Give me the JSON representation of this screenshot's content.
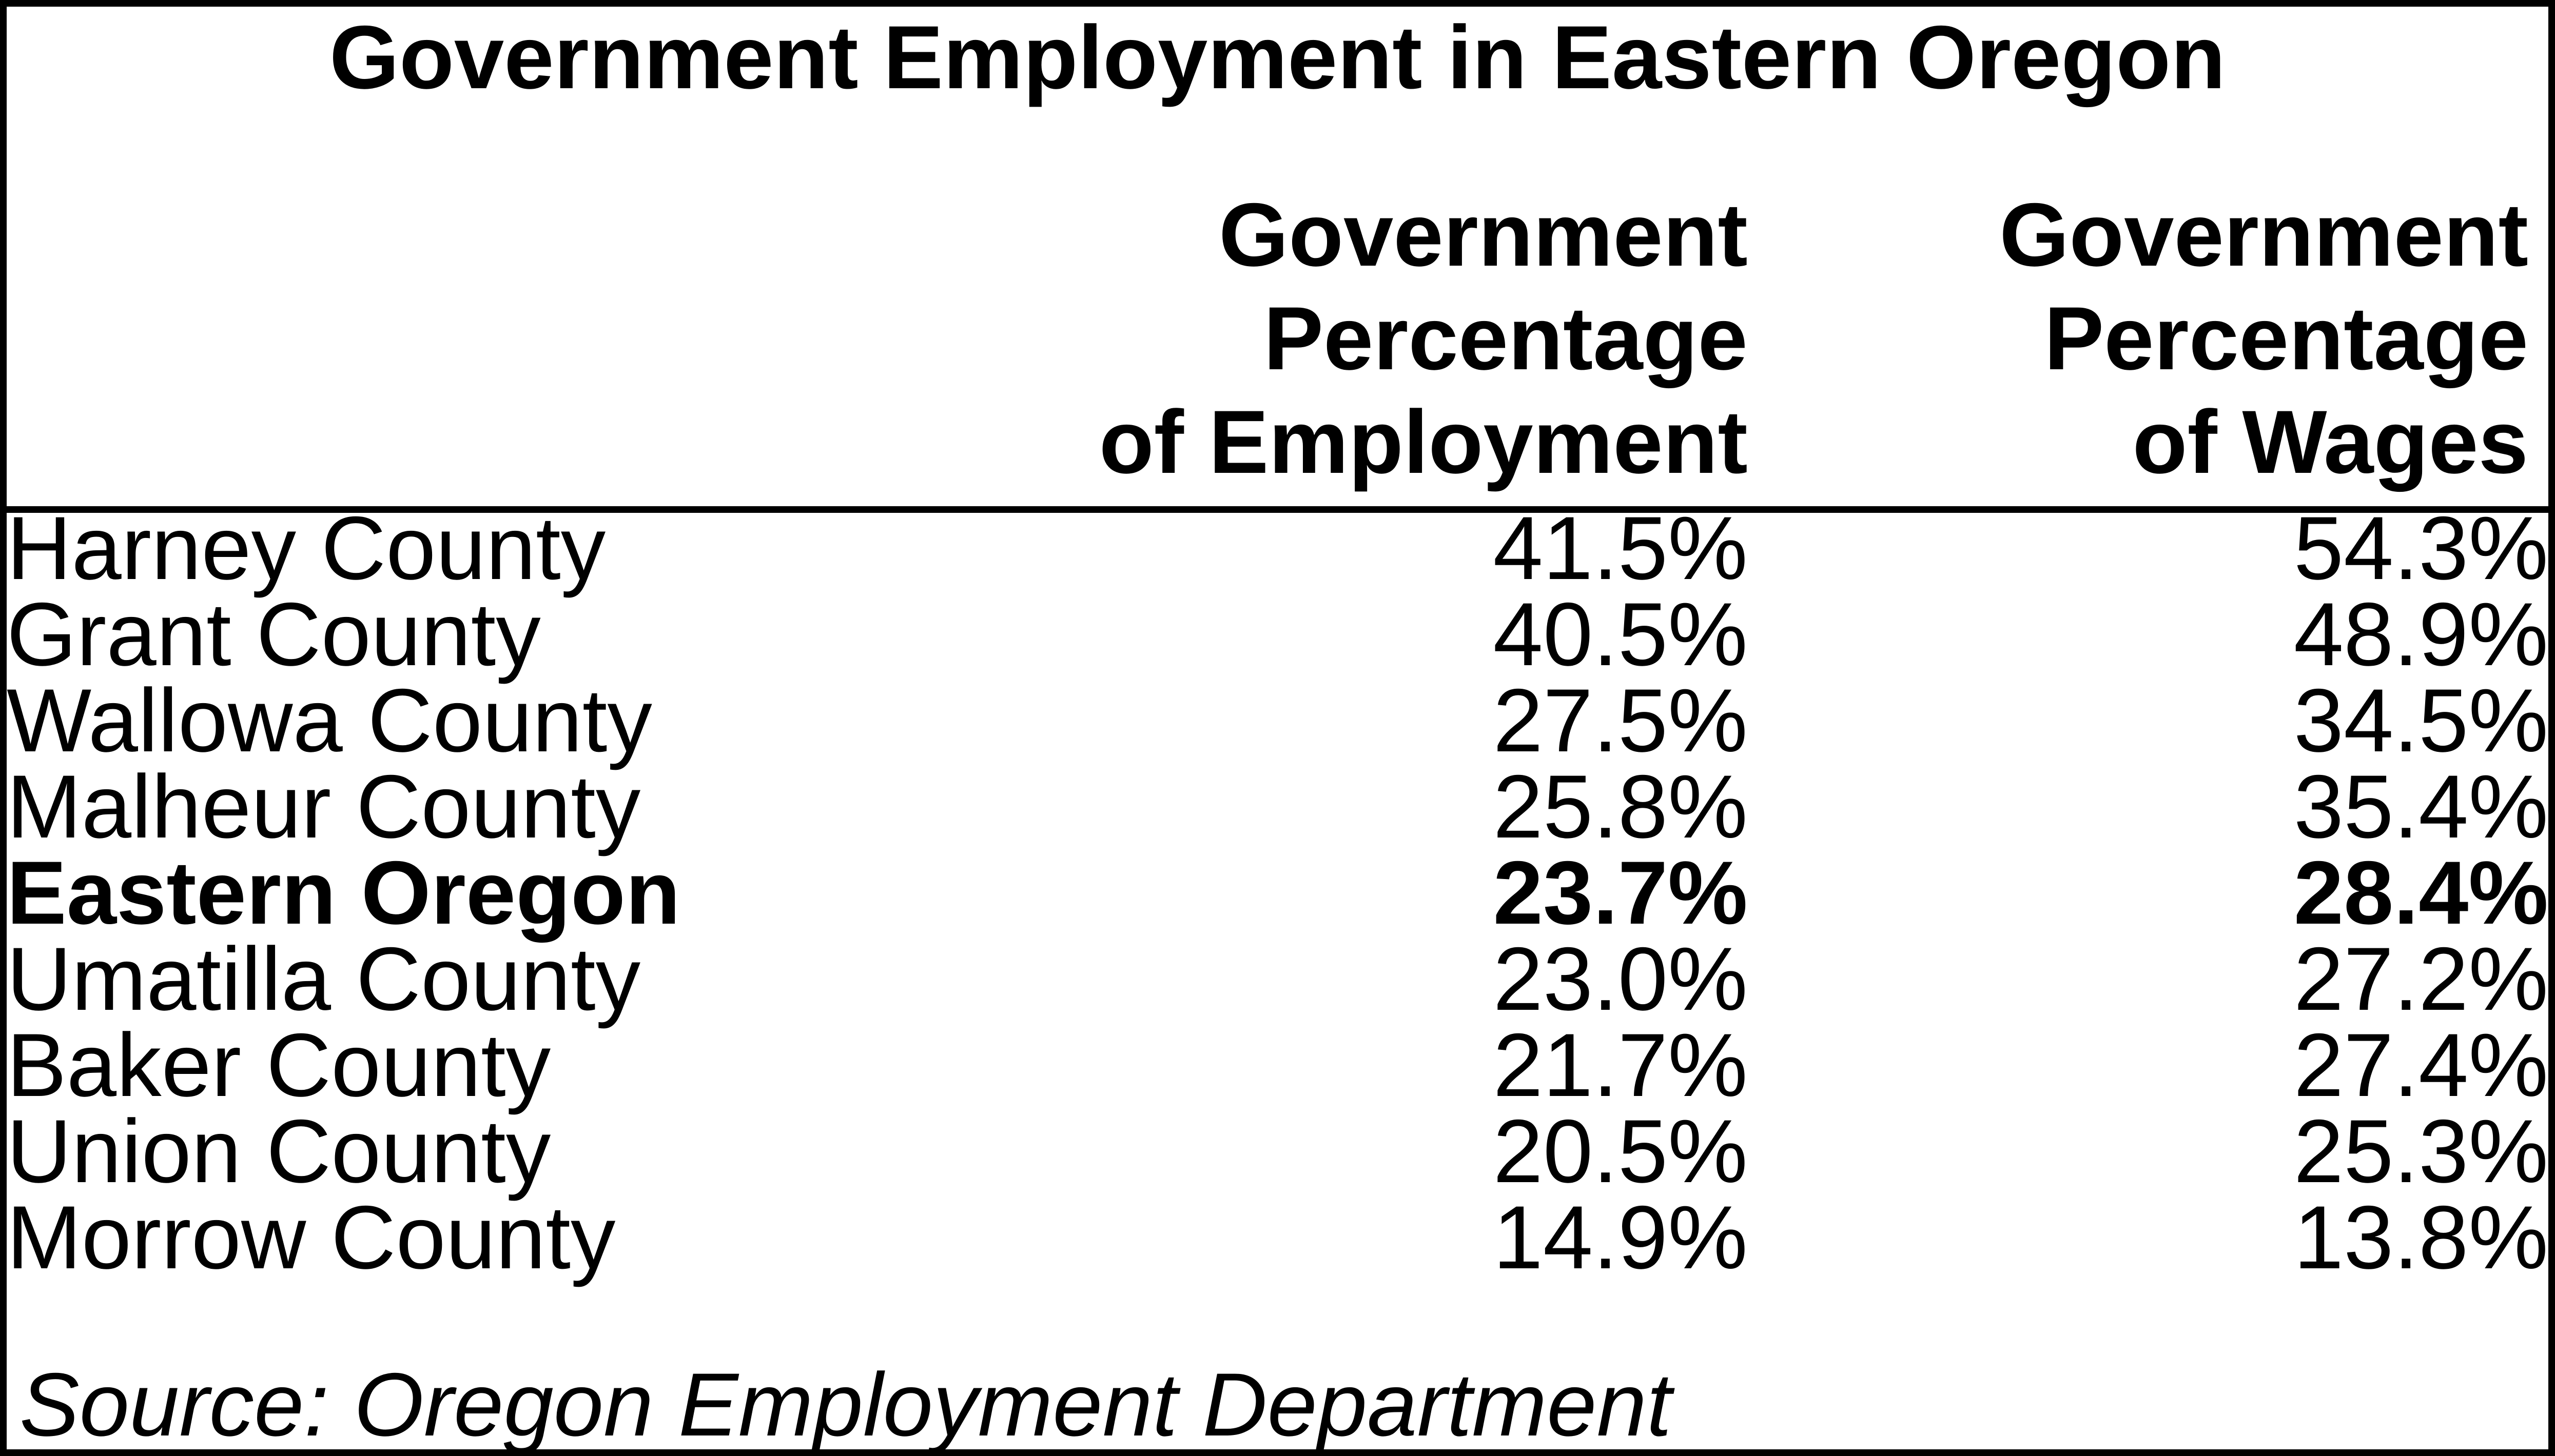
{
  "table": {
    "title": "Government Employment in Eastern Oregon",
    "columns": {
      "employment": {
        "line1": "Government",
        "line2": "Percentage",
        "line3": "of Employment"
      },
      "wages": {
        "line1": "Government",
        "line2": "Percentage",
        "line3": "of Wages"
      }
    },
    "rows": [
      {
        "name": "Harney County",
        "employment": "41.5%",
        "wages": "54.3%"
      },
      {
        "name": "Grant County",
        "employment": "40.5%",
        "wages": "48.9%"
      },
      {
        "name": "Wallowa County",
        "employment": "27.5%",
        "wages": "34.5%"
      },
      {
        "name": "Malheur County",
        "employment": "25.8%",
        "wages": "35.4%"
      },
      {
        "name": "Eastern Oregon",
        "employment": "23.7%",
        "wages": "28.4%"
      },
      {
        "name": "Umatilla County",
        "employment": "23.0%",
        "wages": "27.2%"
      },
      {
        "name": "Baker County",
        "employment": "21.7%",
        "wages": "27.4%"
      },
      {
        "name": "Union County",
        "employment": "20.5%",
        "wages": "25.3%"
      },
      {
        "name": "Morrow County",
        "employment": "14.9%",
        "wages": "13.8%"
      }
    ],
    "source": "Source: Oregon Employment Department",
    "colors": {
      "text": "#000000",
      "background": "#ffffff",
      "border": "#000000"
    }
  },
  "chart_data": {
    "type": "table",
    "title": "Government Employment in Eastern Oregon",
    "columns": [
      "",
      "Government Percentage of Employment",
      "Government Percentage of Wages"
    ],
    "rows": [
      [
        "Harney County",
        "41.5%",
        "54.3%"
      ],
      [
        "Grant County",
        "40.5%",
        "48.9%"
      ],
      [
        "Wallowa County",
        "27.5%",
        "34.5%"
      ],
      [
        "Malheur County",
        "25.8%",
        "35.4%"
      ],
      [
        "Eastern Oregon",
        "23.7%",
        "28.4%"
      ],
      [
        "Umatilla County",
        "23.0%",
        "27.2%"
      ],
      [
        "Baker County",
        "21.7%",
        "27.4%"
      ],
      [
        "Union County",
        "20.5%",
        "25.3%"
      ],
      [
        "Morrow County",
        "14.9%",
        "13.8%"
      ]
    ],
    "highlighted_row": "Eastern Oregon",
    "source": "Source: Oregon Employment Department"
  }
}
